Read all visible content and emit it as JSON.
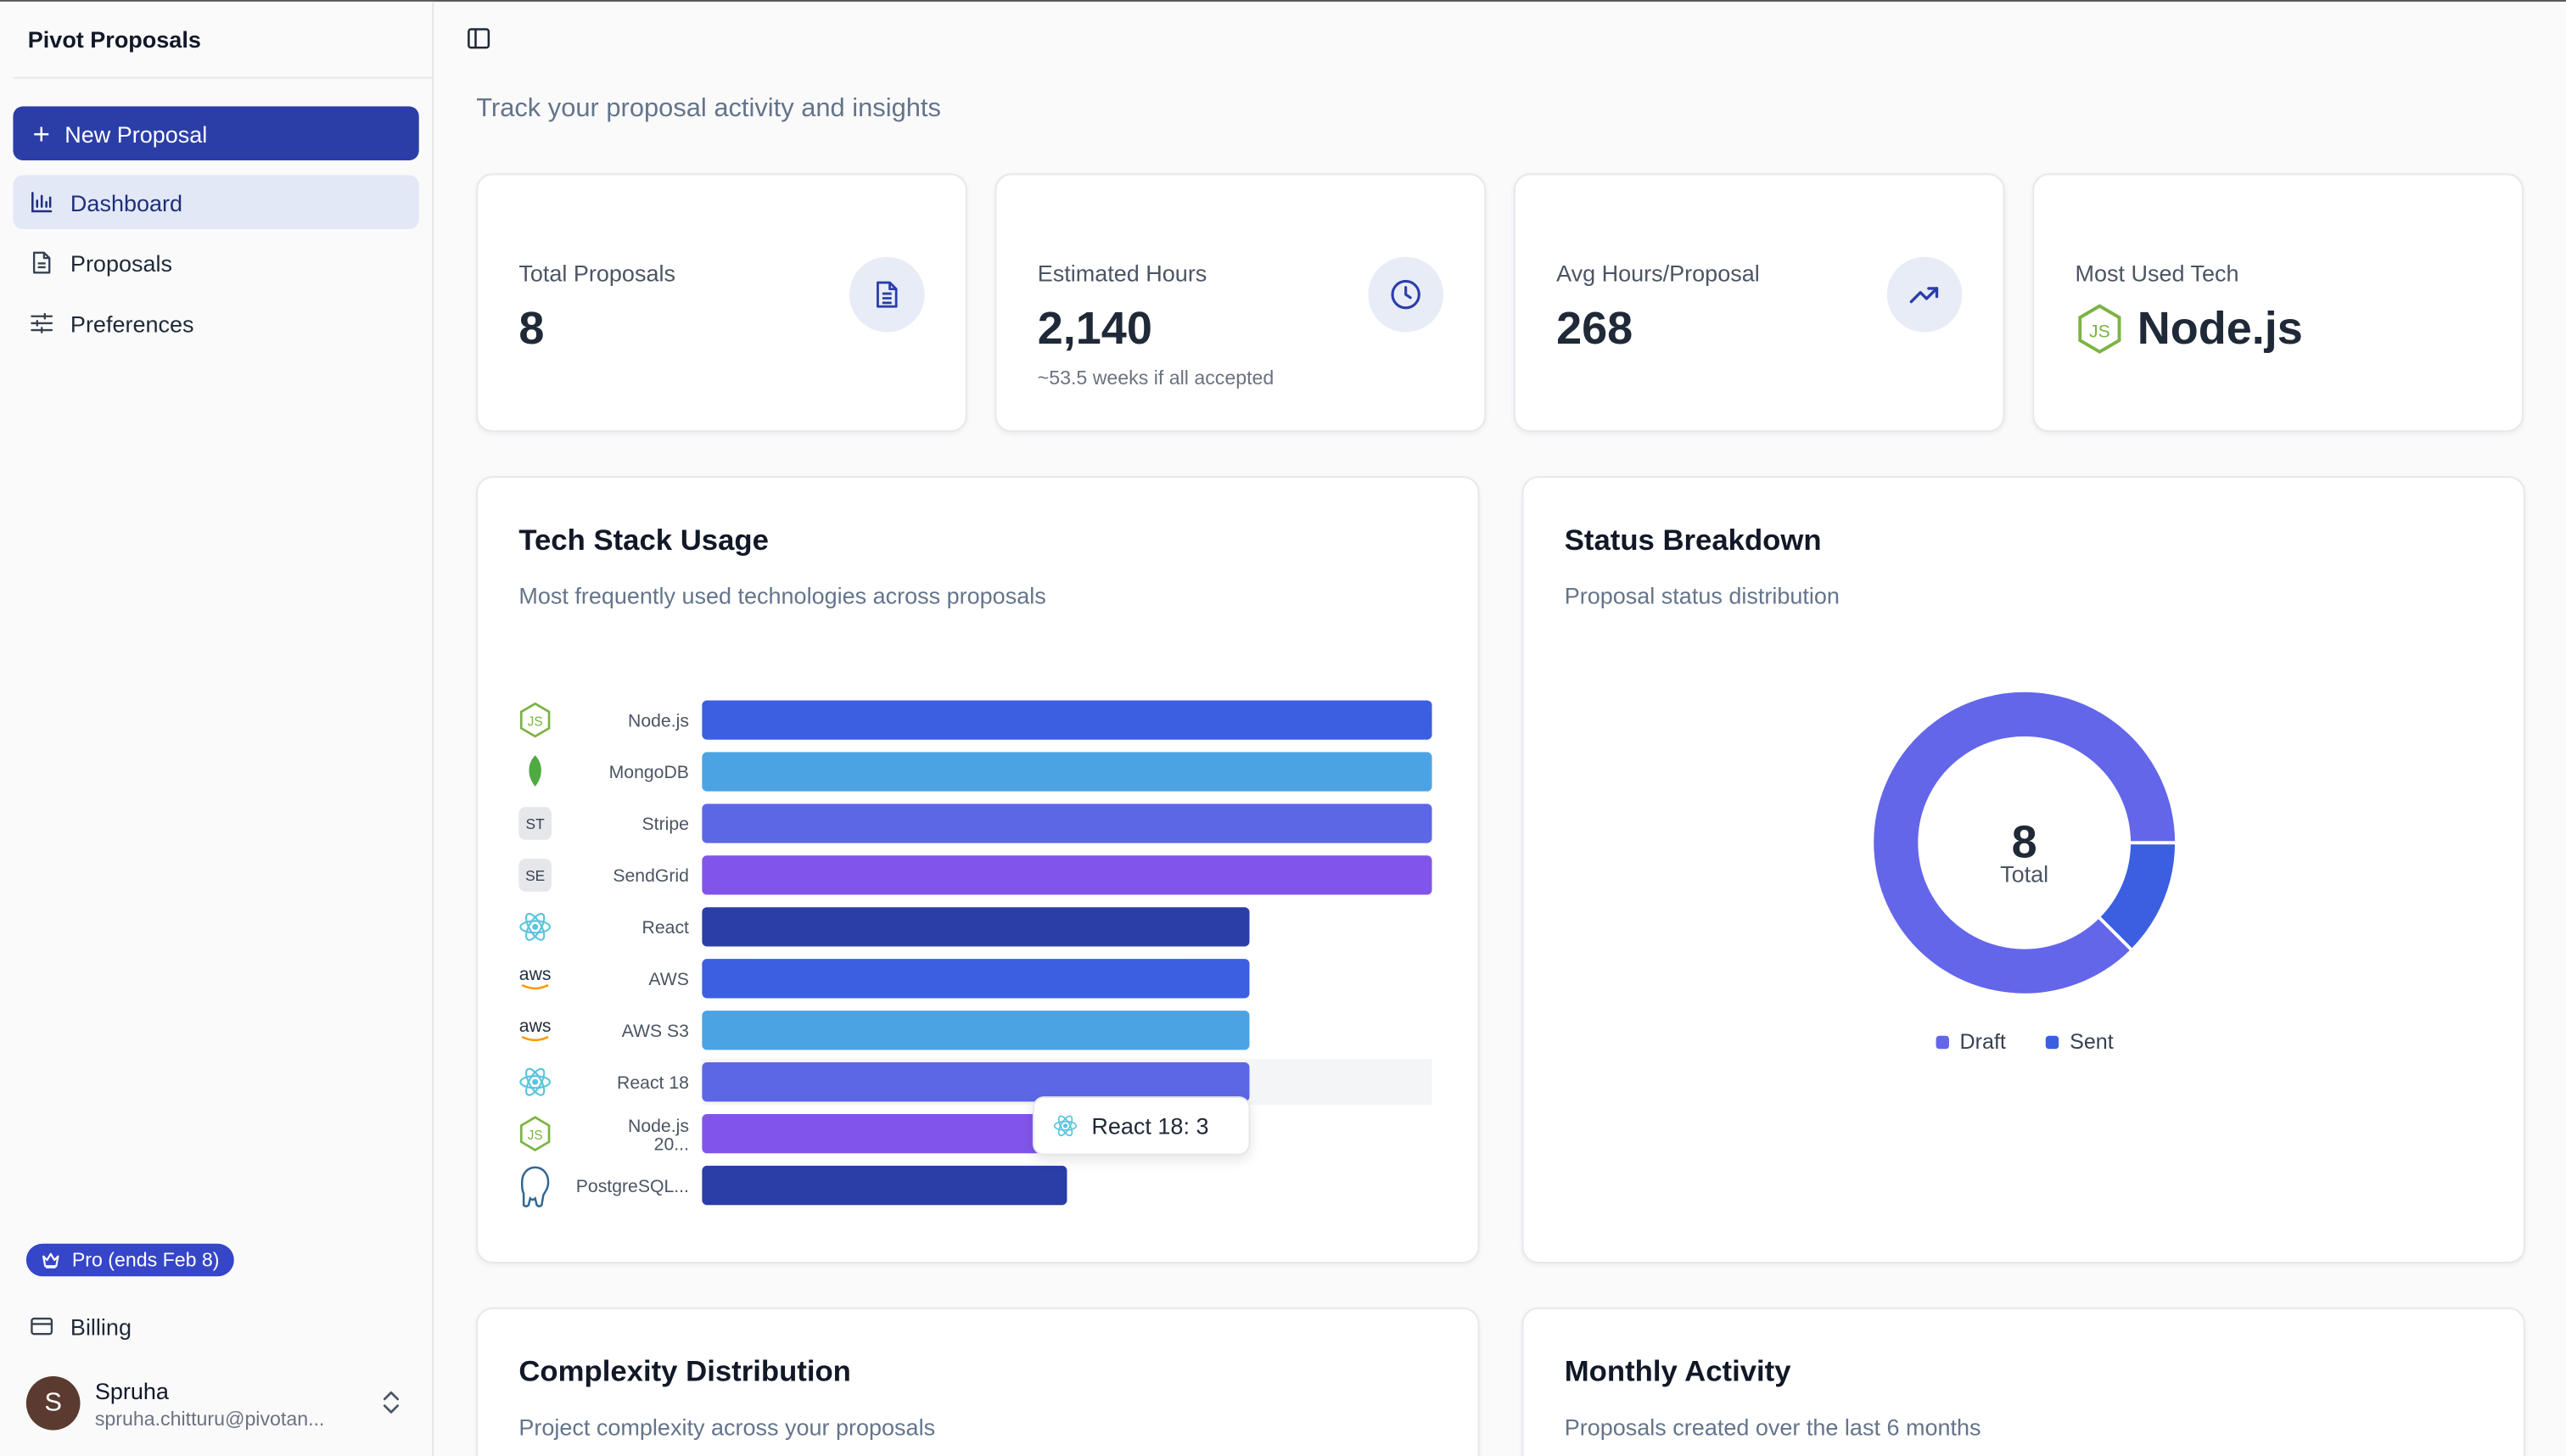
{
  "app": {
    "name": "Pivot Proposals"
  },
  "sidebar": {
    "new_proposal": "New Proposal",
    "items": [
      {
        "label": "Dashboard",
        "icon": "bar-chart-icon",
        "active": true
      },
      {
        "label": "Proposals",
        "icon": "file-icon",
        "active": false
      },
      {
        "label": "Preferences",
        "icon": "sliders-icon",
        "active": false
      }
    ],
    "plan_badge": "Pro (ends Feb 8)",
    "billing": "Billing",
    "user": {
      "initial": "S",
      "name": "Spruha",
      "email": "spruha.chitturu@pivotan..."
    }
  },
  "header": {
    "subtitle": "Track your proposal activity and insights"
  },
  "stats": [
    {
      "label": "Total Proposals",
      "value": "8",
      "sub": "",
      "icon": "document-icon"
    },
    {
      "label": "Estimated Hours",
      "value": "2,140",
      "sub": "~53.5 weeks if all accepted",
      "icon": "clock-icon"
    },
    {
      "label": "Avg Hours/Proposal",
      "value": "268",
      "sub": "",
      "icon": "trending-up-icon"
    },
    {
      "label": "Most Used Tech",
      "value": "Node.js",
      "sub": "",
      "icon": "nodejs-icon"
    }
  ],
  "tech_card": {
    "title": "Tech Stack Usage",
    "subtitle": "Most frequently used technologies across proposals",
    "tooltip": {
      "label": "React 18: 3",
      "icon": "react-icon"
    }
  },
  "status_card": {
    "title": "Status Breakdown",
    "subtitle": "Proposal status distribution",
    "center_value": "8",
    "center_label": "Total"
  },
  "complexity_card": {
    "title": "Complexity Distribution",
    "subtitle": "Project complexity across your proposals"
  },
  "monthly_card": {
    "title": "Monthly Activity",
    "subtitle": "Proposals created over the last 6 months"
  },
  "chart_data": [
    {
      "type": "bar",
      "orientation": "horizontal",
      "title": "Tech Stack Usage",
      "categories": [
        "Node.js",
        "MongoDB",
        "Stripe",
        "SendGrid",
        "React",
        "AWS",
        "AWS S3",
        "React 18",
        "Node.js 20...",
        "PostgreSQL..."
      ],
      "tick_labels": [
        "Node.js",
        "MongoDB",
        "Stripe",
        "SendGrid",
        "React",
        "AWS",
        "AWS S3",
        "React 18",
        "Node.js|20...",
        "PostgreSQL..."
      ],
      "icons": [
        "nodejs-icon",
        "mongodb-icon",
        "ST",
        "SE",
        "react-icon",
        "aws-icon",
        "aws-icon",
        "react-icon",
        "nodejs-icon",
        "postgresql-icon"
      ],
      "values": [
        4,
        4,
        4,
        4,
        3,
        3,
        3,
        3,
        2,
        2
      ],
      "colors": [
        "#3b5fe0",
        "#4ba3e3",
        "#5c67e6",
        "#8255ea",
        "#2b3ea8",
        "#3b5fe0",
        "#4ba3e3",
        "#5c67e6",
        "#8255ea",
        "#2b3ea8"
      ],
      "xlim": [
        0,
        4
      ],
      "grid": false
    },
    {
      "type": "pie",
      "style": "donut",
      "title": "Status Breakdown",
      "labels": [
        "Draft",
        "Sent"
      ],
      "values": [
        7,
        1
      ],
      "colors": [
        "#6366e9",
        "#3b5fe0"
      ],
      "legend": "bottom"
    }
  ]
}
